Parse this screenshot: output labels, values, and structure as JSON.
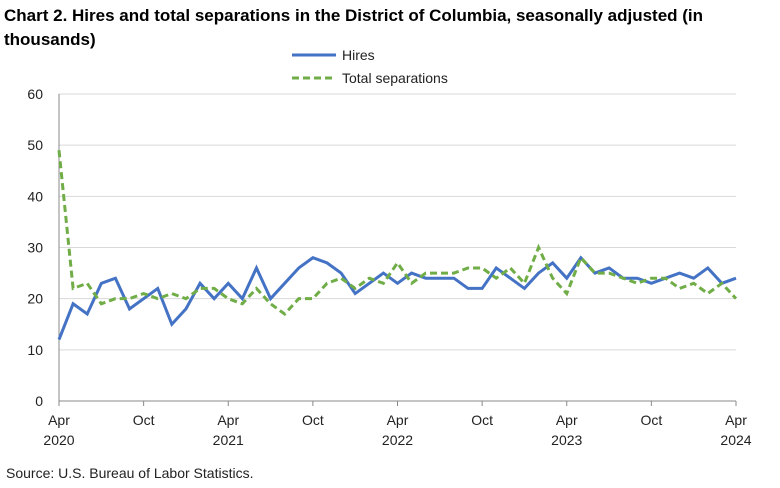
{
  "chart_data": {
    "type": "line",
    "title": "Chart 2. Hires and total separations in the District of Columbia, seasonally adjusted (in thousands)",
    "source": "Source: U.S. Bureau of Labor Statistics.",
    "categories": [
      "Apr 2020",
      null,
      null,
      null,
      null,
      null,
      "Oct",
      null,
      null,
      null,
      null,
      null,
      "Apr 2021",
      null,
      null,
      null,
      null,
      null,
      "Oct",
      null,
      null,
      null,
      null,
      null,
      "Apr 2022",
      null,
      null,
      null,
      null,
      null,
      "Oct",
      null,
      null,
      null,
      null,
      null,
      "Apr 2023",
      null,
      null,
      null,
      null,
      null,
      "Oct",
      null,
      null,
      null,
      null,
      null,
      "Apr 2024"
    ],
    "series": [
      {
        "name": "Hires",
        "color": "#4472c4",
        "dashed": false,
        "values": [
          12,
          19,
          17,
          23,
          24,
          18,
          20,
          22,
          15,
          18,
          23,
          20,
          23,
          20,
          26,
          20,
          23,
          26,
          28,
          27,
          25,
          21,
          23,
          25,
          23,
          25,
          24,
          24,
          24,
          22,
          22,
          26,
          24,
          22,
          25,
          27,
          24,
          28,
          25,
          26,
          24,
          24,
          23,
          24,
          25,
          24,
          26,
          23,
          24
        ]
      },
      {
        "name": "Total separations",
        "color": "#70ad47",
        "dashed": true,
        "values": [
          49,
          22,
          23,
          19,
          20,
          20,
          21,
          20,
          21,
          20,
          22,
          22,
          20,
          19,
          22,
          19,
          17,
          20,
          20,
          23,
          24,
          22,
          24,
          23,
          27,
          23,
          25,
          25,
          25,
          26,
          26,
          24,
          26,
          23,
          30,
          24,
          21,
          28,
          25,
          25,
          24,
          23,
          24,
          24,
          22,
          23,
          21,
          23,
          20
        ]
      }
    ],
    "ylim": [
      0,
      60
    ],
    "yticks": [
      0,
      10,
      20,
      30,
      40,
      50,
      60
    ],
    "grid": true,
    "legend": "top"
  }
}
